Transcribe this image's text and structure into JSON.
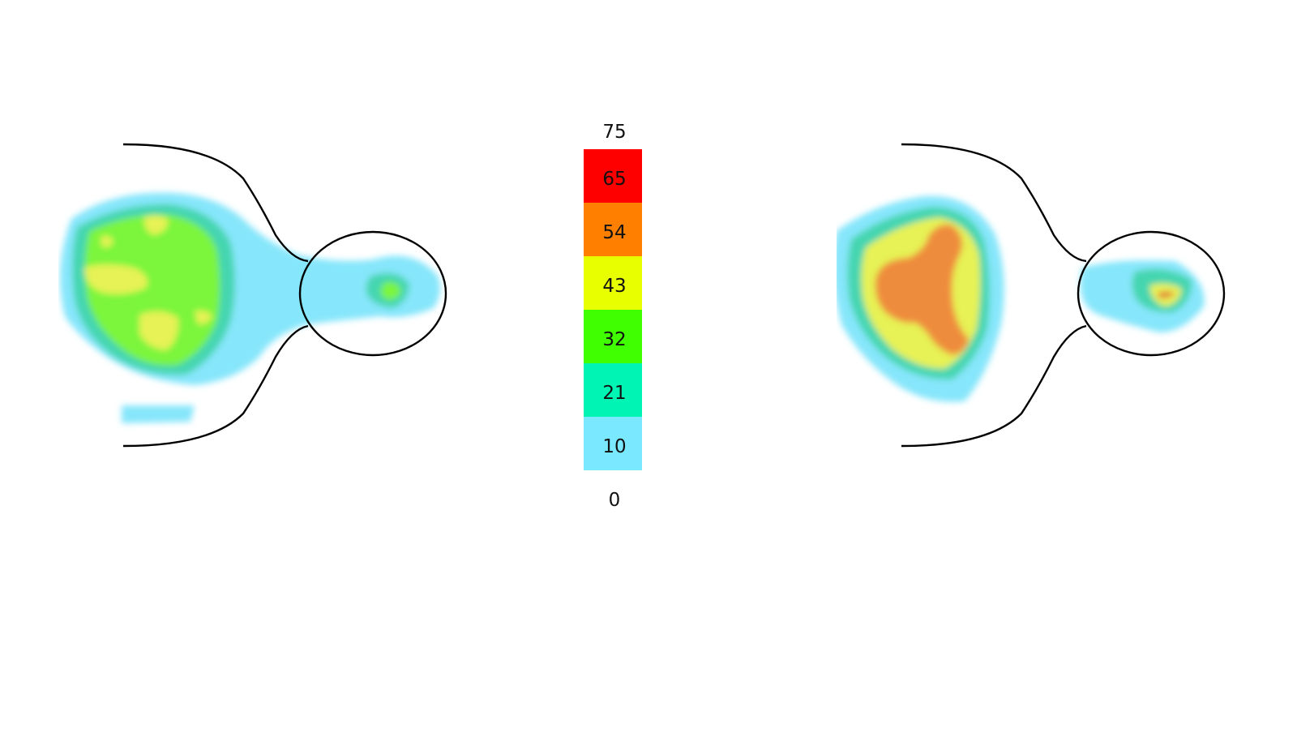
{
  "figure": {
    "panels": [
      {
        "id": "left",
        "hotspot_style": "moderate"
      },
      {
        "id": "right",
        "hotspot_style": "intense"
      }
    ]
  },
  "colorbar": {
    "ticks": [
      "75",
      "65",
      "54",
      "43",
      "32",
      "21",
      "10",
      "0"
    ],
    "bands": [
      {
        "from": "65",
        "to": "75",
        "color": "#ff0000"
      },
      {
        "from": "54",
        "to": "65",
        "color": "#ff8000"
      },
      {
        "from": "43",
        "to": "54",
        "color": "#e8ff00"
      },
      {
        "from": "32",
        "to": "43",
        "color": "#40ff00"
      },
      {
        "from": "21",
        "to": "32",
        "color": "#00f5b5"
      },
      {
        "from": "10",
        "to": "21",
        "color": "#7ae9ff"
      },
      {
        "from": "0",
        "to": "10",
        "color": "#ffffff"
      }
    ]
  },
  "heat_colors": {
    "cyan": "#86e6fb",
    "teal": "#44d6b0",
    "green": "#7cf53c",
    "yellow": "#e6f255",
    "orange": "#ee8c3c",
    "red": "#e25030"
  }
}
